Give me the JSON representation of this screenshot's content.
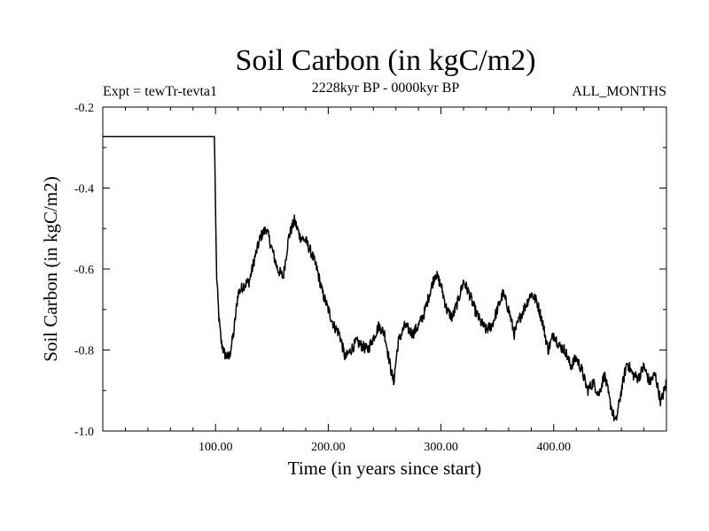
{
  "chart_data": {
    "type": "line",
    "title": "Soil Carbon (in kgC/m2)",
    "subtitle": "2228kyr BP - 0000kyr BP",
    "experiment": "Expt = tewTr-tevta1",
    "period": "ALL_MONTHS",
    "xlabel": "Time (in years since start)",
    "ylabel": "Soil Carbon (in kgC/m2)",
    "xlim": [
      0,
      500
    ],
    "ylim": [
      -1.0,
      -0.2
    ],
    "x_ticks": [
      100,
      200,
      300,
      400
    ],
    "x_tick_labels": [
      "100.00",
      "200.00",
      "300.00",
      "400.00"
    ],
    "y_ticks": [
      -1.0,
      -0.8,
      -0.6,
      -0.4,
      -0.2
    ],
    "y_tick_labels": [
      "-1.0",
      "-0.8",
      "-0.6",
      "-0.4",
      "-0.2"
    ],
    "grid": false,
    "series": [
      {
        "name": "Soil Carbon",
        "color": "#000000",
        "x": [
          0,
          20,
          40,
          60,
          80,
          99,
          100,
          101,
          103,
          105,
          108,
          112,
          116,
          120,
          125,
          130,
          135,
          140,
          145,
          150,
          155,
          160,
          165,
          170,
          175,
          180,
          185,
          190,
          195,
          200,
          205,
          210,
          215,
          220,
          225,
          230,
          235,
          240,
          245,
          250,
          255,
          258,
          262,
          268,
          275,
          280,
          285,
          290,
          295,
          300,
          305,
          310,
          315,
          320,
          325,
          330,
          335,
          340,
          345,
          350,
          355,
          360,
          365,
          370,
          375,
          380,
          385,
          390,
          395,
          400,
          405,
          410,
          415,
          420,
          425,
          430,
          435,
          440,
          445,
          450,
          455,
          460,
          465,
          470,
          475,
          480,
          485,
          490,
          495,
          500
        ],
        "values": [
          -0.273,
          -0.273,
          -0.273,
          -0.273,
          -0.273,
          -0.273,
          -0.45,
          -0.62,
          -0.72,
          -0.78,
          -0.81,
          -0.82,
          -0.76,
          -0.66,
          -0.64,
          -0.63,
          -0.57,
          -0.52,
          -0.5,
          -0.55,
          -0.6,
          -0.62,
          -0.52,
          -0.48,
          -0.52,
          -0.53,
          -0.56,
          -0.6,
          -0.66,
          -0.7,
          -0.74,
          -0.76,
          -0.82,
          -0.8,
          -0.78,
          -0.79,
          -0.8,
          -0.77,
          -0.74,
          -0.76,
          -0.84,
          -0.88,
          -0.78,
          -0.74,
          -0.76,
          -0.74,
          -0.71,
          -0.66,
          -0.61,
          -0.64,
          -0.7,
          -0.72,
          -0.68,
          -0.63,
          -0.66,
          -0.7,
          -0.73,
          -0.75,
          -0.74,
          -0.7,
          -0.66,
          -0.7,
          -0.76,
          -0.72,
          -0.69,
          -0.66,
          -0.68,
          -0.73,
          -0.8,
          -0.76,
          -0.79,
          -0.8,
          -0.84,
          -0.82,
          -0.85,
          -0.9,
          -0.88,
          -0.91,
          -0.86,
          -0.93,
          -0.98,
          -0.9,
          -0.83,
          -0.86,
          -0.87,
          -0.84,
          -0.88,
          -0.86,
          -0.93,
          -0.88
        ]
      }
    ]
  }
}
